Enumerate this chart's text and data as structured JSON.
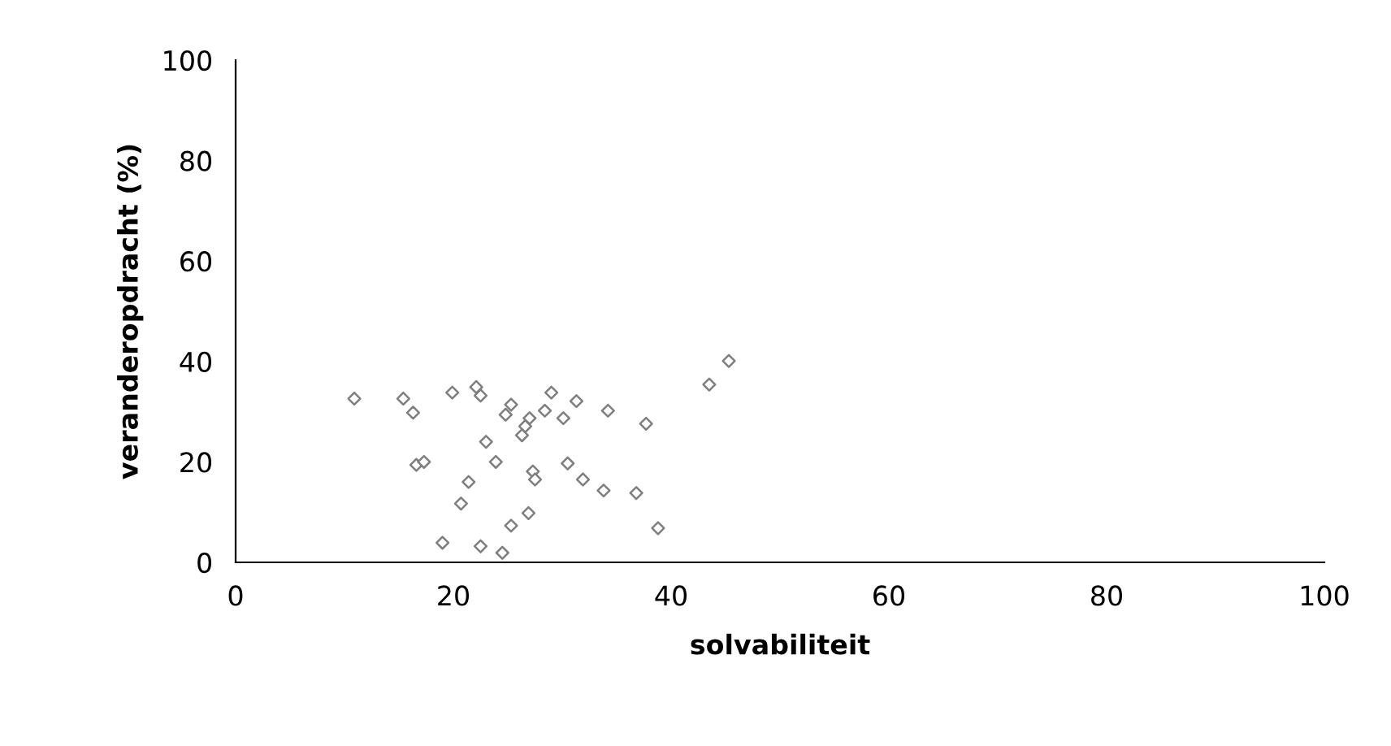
{
  "chart_data": {
    "type": "scatter",
    "xlabel": "solvabiliteit",
    "ylabel": "veranderopdracht (%)",
    "x": [
      10.9,
      15.4,
      16.3,
      19.9,
      22.1,
      22.5,
      25.3,
      24.8,
      29.0,
      31.3,
      28.4,
      30.1,
      27.0,
      26.6,
      26.3,
      34.2,
      37.7,
      43.5,
      45.3,
      23.0,
      16.6,
      17.3,
      23.9,
      27.3,
      27.5,
      30.5,
      31.9,
      33.8,
      36.8,
      21.4,
      20.7,
      26.9,
      25.3,
      38.8,
      19.0,
      22.5,
      24.5
    ],
    "series": [
      {
        "color": "#7f7f7f",
        "values": [
          32.6,
          32.6,
          29.8,
          33.8,
          34.9,
          33.2,
          31.4,
          29.4,
          33.8,
          32.1,
          30.2,
          28.7,
          28.7,
          27.1,
          25.3,
          30.2,
          27.6,
          35.4,
          40.1,
          24.0,
          19.4,
          20.0,
          20.0,
          18.1,
          16.5,
          19.7,
          16.5,
          14.3,
          13.8,
          16.0,
          11.7,
          9.8,
          7.3,
          6.8,
          3.9,
          3.2,
          1.9
        ]
      }
    ],
    "xlim": [
      0,
      100
    ],
    "ylim": [
      0,
      100
    ],
    "xticks": [
      0,
      20,
      40,
      60,
      80,
      100
    ],
    "yticks": [
      0,
      20,
      40,
      60,
      80,
      100
    ],
    "marker": "diamond",
    "grid": false
  }
}
